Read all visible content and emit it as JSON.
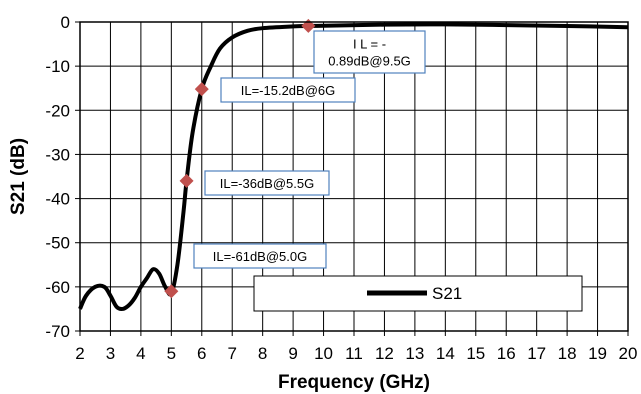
{
  "chart_data": {
    "type": "line",
    "title": "",
    "xlabel": "Frequency (GHz)",
    "ylabel": "S21 (dB)",
    "xlim": [
      2,
      20
    ],
    "ylim": [
      -70,
      0
    ],
    "xticks": [
      2,
      3,
      4,
      5,
      6,
      7,
      8,
      9,
      10,
      11,
      12,
      13,
      14,
      15,
      16,
      17,
      18,
      19,
      20
    ],
    "yticks": [
      0,
      -10,
      -20,
      -30,
      -40,
      -50,
      -60,
      -70
    ],
    "grid": true,
    "legend": {
      "position": "bottom-right",
      "entries": [
        "S21"
      ]
    },
    "series": [
      {
        "name": "S21",
        "color": "#000000",
        "x": [
          2.0,
          2.2,
          2.5,
          2.8,
          3.0,
          3.2,
          3.4,
          3.6,
          3.8,
          4.0,
          4.2,
          4.4,
          4.6,
          4.8,
          5.0,
          5.2,
          5.4,
          5.5,
          5.7,
          6.0,
          6.3,
          6.6,
          7.0,
          7.5,
          8.0,
          9.0,
          9.5,
          10,
          12,
          14,
          16,
          18,
          20
        ],
        "y": [
          -65,
          -62,
          -60,
          -60,
          -62,
          -64.5,
          -65,
          -64.2,
          -62.5,
          -60,
          -58,
          -56,
          -57,
          -60,
          -61.5,
          -55,
          -43,
          -36,
          -25,
          -15.2,
          -10,
          -6,
          -3.5,
          -2,
          -1.4,
          -1.0,
          -0.89,
          -0.85,
          -0.6,
          -0.55,
          -0.7,
          -0.9,
          -1.2
        ]
      }
    ],
    "markers": [
      {
        "x": 5.0,
        "y": -61,
        "label": "IL=-61dB@5.0G"
      },
      {
        "x": 5.5,
        "y": -36,
        "label": "IL=-36dB@5.5G"
      },
      {
        "x": 6.0,
        "y": -15.2,
        "label": "IL=-15.2dB@6G"
      },
      {
        "x": 9.5,
        "y": -0.89,
        "label_lines": [
          "I L = -",
          "0.89dB@9.5G"
        ]
      }
    ],
    "marker_color": "#c0504d"
  }
}
